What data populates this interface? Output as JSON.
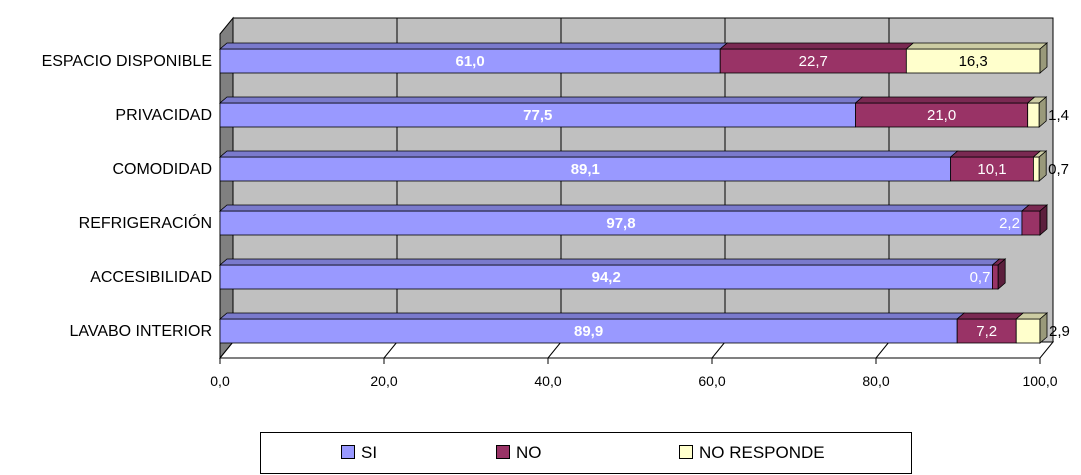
{
  "chart_data": {
    "type": "bar",
    "orientation": "horizontal",
    "stacked": true,
    "style": "3d",
    "categories": [
      "ESPACIO DISPONIBLE",
      "PRIVACIDAD",
      "COMODIDAD",
      "REFRIGERACIÓN",
      "ACCESIBILIDAD",
      "LAVABO INTERIOR"
    ],
    "series": [
      {
        "name": "SI",
        "color": "#9999FF",
        "values": [
          61.0,
          77.5,
          89.1,
          97.8,
          94.2,
          89.9
        ],
        "labels": [
          "61,0",
          "77,5",
          "89,1",
          "97,8",
          "94,2",
          "89,9"
        ]
      },
      {
        "name": "NO",
        "color": "#993366",
        "values": [
          22.7,
          21.0,
          10.1,
          2.2,
          0.7,
          7.2
        ],
        "labels": [
          "22,7",
          "21,0",
          "10,1",
          "2,2",
          "0,7",
          "7,2"
        ]
      },
      {
        "name": "NO RESPONDE",
        "color": "#FFFFCC",
        "values": [
          16.3,
          1.4,
          0.7,
          0.0,
          0.0,
          2.9
        ],
        "labels": [
          "16,3",
          "1,4",
          "0,7",
          "",
          "",
          "2,9"
        ]
      }
    ],
    "xlim": [
      0,
      100
    ],
    "xticks": [
      0,
      20,
      40,
      60,
      80,
      100
    ],
    "xtick_labels": [
      "0,0",
      "20,0",
      "40,0",
      "60,0",
      "80,0",
      "100,0"
    ],
    "grid": true,
    "legend_position": "bottom",
    "title": "",
    "xlabel": "",
    "ylabel": ""
  }
}
